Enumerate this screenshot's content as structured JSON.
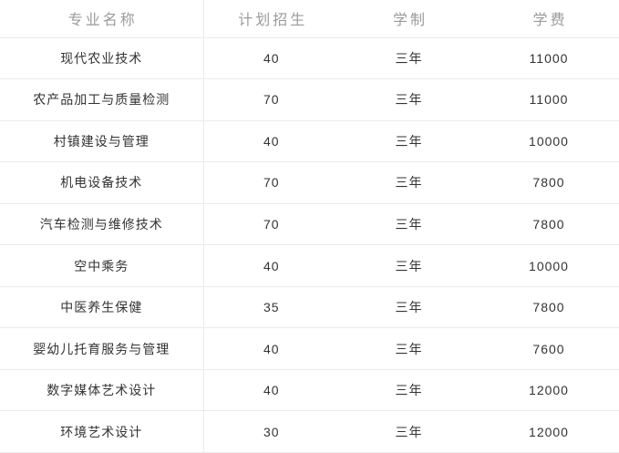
{
  "chart_data": {
    "type": "table",
    "columns": [
      "专业名称",
      "计划招生",
      "学制",
      "学费"
    ],
    "rows": [
      [
        "现代农业技术",
        "40",
        "三年",
        "11000"
      ],
      [
        "农产品加工与质量检测",
        "70",
        "三年",
        "11000"
      ],
      [
        "村镇建设与管理",
        "40",
        "三年",
        "10000"
      ],
      [
        "机电设备技术",
        "70",
        "三年",
        "7800"
      ],
      [
        "汽车检测与维修技术",
        "70",
        "三年",
        "7800"
      ],
      [
        "空中乘务",
        "40",
        "三年",
        "10000"
      ],
      [
        "中医养生保健",
        "35",
        "三年",
        "7800"
      ],
      [
        "婴幼儿托育服务与管理",
        "40",
        "三年",
        "7600"
      ],
      [
        "数字媒体艺术设计",
        "40",
        "三年",
        "12000"
      ],
      [
        "环境艺术设计",
        "30",
        "三年",
        "12000"
      ]
    ],
    "layout": {
      "grid": "horizontal row separators on every row; single vertical divider after first column",
      "header_position": "top"
    }
  },
  "colors": {
    "background": "#ffffff",
    "header_text": "#9b9b9b",
    "body_text": "#333333",
    "border": "#ebebeb"
  }
}
